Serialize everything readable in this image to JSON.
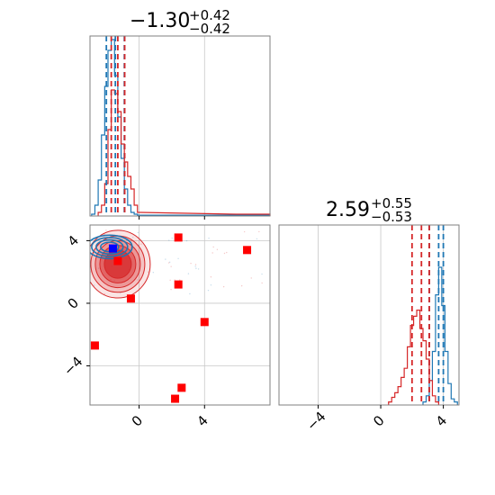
{
  "colors": {
    "blue": "#1f77b4",
    "red": "#d62728",
    "marker_red": "#ff0000",
    "marker_blue": "#0000ff",
    "grid": "#c8c8c8",
    "frame": "#7f7f7f"
  },
  "chart_data": [
    {
      "type": "histogram",
      "panel": "marginal-x",
      "title": {
        "value": "−1.30",
        "plus": "+0.42",
        "minus": "−0.42"
      },
      "xlim": [
        -3.0,
        8.0
      ],
      "grid": true,
      "series": [
        {
          "color": "#1f77b4",
          "x": [
            -2.8,
            -2.6,
            -2.4,
            -2.2,
            -2.0,
            -1.8,
            -1.6,
            -1.4,
            -1.2,
            -1.0,
            -0.8,
            -0.6,
            -0.4,
            -0.2
          ],
          "values": [
            0.01,
            0.06,
            0.2,
            0.45,
            0.72,
            0.92,
            0.98,
            0.78,
            0.55,
            0.32,
            0.15,
            0.06,
            0.02,
            0.01
          ]
        },
        {
          "color": "#d62728",
          "x": [
            -2.4,
            -2.2,
            -2.0,
            -1.8,
            -1.6,
            -1.4,
            -1.2,
            -1.0,
            -0.8,
            -0.6,
            -0.4,
            -0.2,
            0.0,
            6.0,
            7.9
          ],
          "values": [
            0.02,
            0.06,
            0.18,
            0.48,
            0.7,
            0.68,
            0.58,
            0.4,
            0.3,
            0.22,
            0.15,
            0.06,
            0.02,
            0.01,
            0.01
          ]
        }
      ],
      "quantile_lines": [
        {
          "color": "#1f77b4",
          "x": [
            -2.0,
            -1.45,
            -0.9
          ]
        },
        {
          "color": "#d62728",
          "x": [
            -1.7,
            -1.3,
            -0.88
          ]
        }
      ]
    },
    {
      "type": "scatter",
      "panel": "joint",
      "xlim": [
        -3.0,
        8.0
      ],
      "ylim": [
        -6.5,
        5.0
      ],
      "xticks": [
        "0",
        "4"
      ],
      "yticks": [
        "4",
        "0",
        "−4"
      ],
      "grid": true,
      "red_squares": [
        {
          "x": 2.4,
          "y": 4.2
        },
        {
          "x": 6.6,
          "y": 3.4
        },
        {
          "x": 2.4,
          "y": 1.2
        },
        {
          "x": -0.5,
          "y": 0.3
        },
        {
          "x": 4.0,
          "y": -1.2
        },
        {
          "x": -2.7,
          "y": -2.7
        },
        {
          "x": 2.6,
          "y": -5.4
        },
        {
          "x": 2.2,
          "y": -6.1
        },
        {
          "x": -1.3,
          "y": 2.7
        }
      ],
      "blue_squares": [
        {
          "x": -1.6,
          "y": 3.5
        }
      ],
      "red_density": {
        "cx": -1.3,
        "cy": 2.5,
        "sx": 1.1,
        "sy": 1.2
      },
      "blue_density": {
        "cx": -1.8,
        "cy": 3.6,
        "sx": 1.1,
        "sy": 0.6
      }
    },
    {
      "type": "histogram",
      "panel": "marginal-y",
      "title": {
        "value": "2.59",
        "plus": "+0.55",
        "minus": "−0.53"
      },
      "xlim": [
        -6.5,
        5.0
      ],
      "xticks": [
        "−4",
        "0",
        "4"
      ],
      "grid": true,
      "series": [
        {
          "color": "#1f77b4",
          "x": [
            2.8,
            3.0,
            3.2,
            3.4,
            3.6,
            3.8,
            4.0,
            4.2,
            4.4,
            4.6,
            4.8
          ],
          "values": [
            0.02,
            0.06,
            0.16,
            0.35,
            0.72,
            0.9,
            0.65,
            0.35,
            0.14,
            0.04,
            0.02
          ]
        },
        {
          "color": "#d62728",
          "x": [
            0.6,
            0.8,
            1.0,
            1.2,
            1.4,
            1.6,
            1.8,
            2.0,
            2.2,
            2.4,
            2.6,
            2.8,
            3.0,
            3.2,
            3.4,
            3.6
          ],
          "values": [
            0.02,
            0.05,
            0.08,
            0.12,
            0.18,
            0.24,
            0.38,
            0.52,
            0.58,
            0.62,
            0.5,
            0.42,
            0.3,
            0.16,
            0.06,
            0.02
          ]
        }
      ],
      "quantile_lines": [
        {
          "color": "#1f77b4",
          "x": [
            3.1,
            3.7,
            4.0
          ]
        },
        {
          "color": "#d62728",
          "x": [
            2.0,
            2.6,
            3.1
          ]
        }
      ]
    }
  ]
}
